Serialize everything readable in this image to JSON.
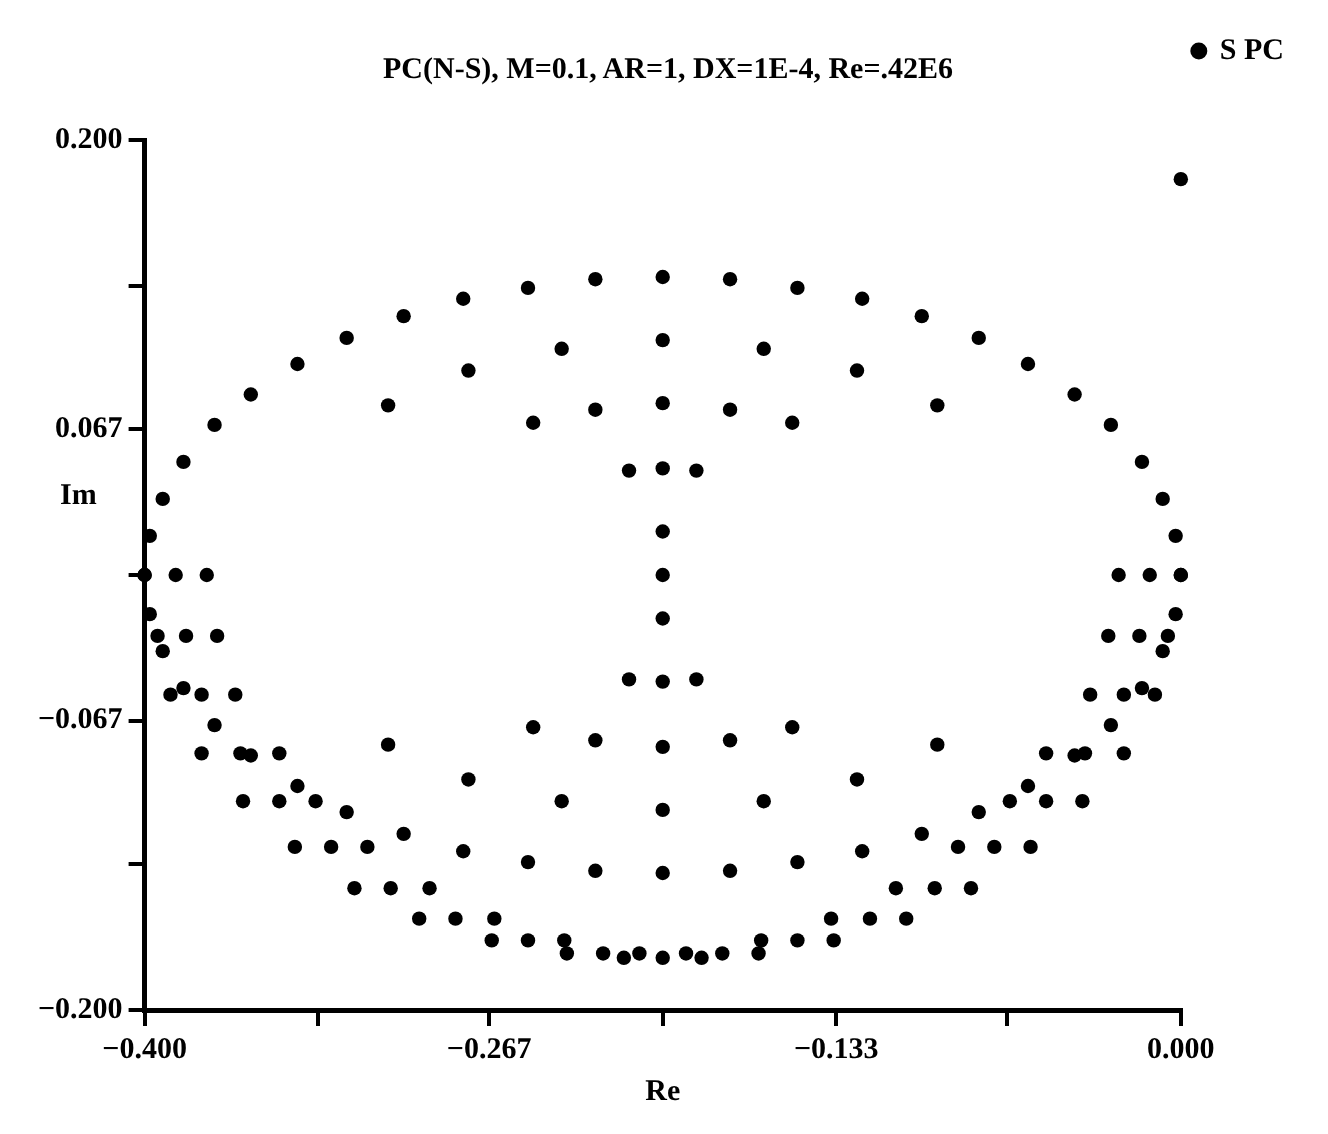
{
  "chart_data": {
    "type": "scatter",
    "title": "PC(N-S), M=0.1, AR=1, DX=1E-4, Re=.42E6",
    "xlabel": "Re",
    "ylabel": "Im",
    "xlim": [
      -0.4,
      0.0
    ],
    "xticks": [
      {
        "value": -0.4,
        "label": "−0.400"
      },
      {
        "value": -0.333,
        "label": null
      },
      {
        "value": -0.267,
        "label": "−0.267"
      },
      {
        "value": -0.2,
        "label": null
      },
      {
        "value": -0.133,
        "label": "−0.133"
      },
      {
        "value": -0.067,
        "label": null
      },
      {
        "value": 0.0,
        "label": "0.000"
      }
    ],
    "ylim": [
      -0.2,
      0.2
    ],
    "yticks": [
      {
        "value": -0.2,
        "label": "−0.200"
      },
      {
        "value": -0.133,
        "label": null
      },
      {
        "value": -0.067,
        "label": "−0.067"
      },
      {
        "value": 0.0,
        "label": null
      },
      0.067,
      {
        "value": 0.133,
        "label": null
      },
      {
        "value": 0.2,
        "label": "0.200"
      }
    ],
    "legend": "top right",
    "marker": "circle",
    "series": [
      {
        "name": "S PC",
        "color": "#000000",
        "x": [
          0.0,
          -0.002,
          -0.007,
          -0.015,
          -0.027,
          -0.041,
          -0.059,
          -0.078,
          -0.1,
          -0.123,
          -0.148,
          -0.174,
          -0.2,
          -0.226,
          -0.252,
          -0.277,
          -0.3,
          -0.322,
          -0.341,
          -0.359,
          -0.373,
          -0.385,
          -0.393,
          -0.398,
          -0.4,
          -0.398,
          -0.393,
          -0.385,
          -0.373,
          -0.359,
          -0.341,
          -0.322,
          -0.3,
          -0.277,
          -0.252,
          -0.226,
          -0.2,
          -0.174,
          -0.148,
          -0.123,
          -0.1,
          -0.078,
          -0.059,
          -0.041,
          -0.027,
          -0.015,
          -0.007,
          -0.002,
          -0.094,
          -0.125,
          -0.15,
          -0.161,
          -0.174,
          -0.187,
          -0.2,
          -0.2,
          -0.2,
          -0.239,
          -0.226,
          -0.213,
          -0.275,
          -0.25,
          -0.306,
          -0.094,
          -0.125,
          -0.15,
          -0.161,
          -0.174,
          -0.187,
          -0.2,
          -0.2,
          -0.2,
          -0.239,
          -0.226,
          -0.213,
          -0.275,
          -0.25,
          -0.306,
          -0.2,
          -0.2,
          -0.2,
          -0.4,
          -0.388,
          -0.376,
          -0.395,
          -0.384,
          -0.372,
          -0.39,
          -0.378,
          -0.365,
          -0.378,
          -0.363,
          -0.348,
          -0.362,
          -0.348,
          -0.334,
          -0.342,
          -0.328,
          -0.314,
          -0.319,
          -0.305,
          -0.29,
          -0.294,
          -0.28,
          -0.265,
          -0.266,
          -0.252,
          -0.238,
          -0.237,
          -0.223,
          -0.209,
          -0.215,
          -0.2,
          -0.185,
          -0.191,
          -0.177,
          -0.163,
          -0.162,
          -0.148,
          -0.134,
          -0.135,
          -0.12,
          -0.106,
          -0.11,
          -0.095,
          -0.081,
          -0.086,
          -0.072,
          -0.058,
          -0.066,
          -0.052,
          -0.038,
          -0.052,
          -0.037,
          -0.022,
          -0.035,
          -0.022,
          -0.01,
          -0.028,
          -0.016,
          -0.005,
          -0.024,
          -0.012,
          0.0,
          0.0
        ],
        "values": [
          0.0,
          0.018,
          0.035,
          0.052,
          0.069,
          0.083,
          0.097,
          0.109,
          0.119,
          0.127,
          0.132,
          0.136,
          0.137,
          0.136,
          0.132,
          0.127,
          0.119,
          0.109,
          0.097,
          0.083,
          0.069,
          0.052,
          0.035,
          0.018,
          0.0,
          -0.018,
          -0.035,
          -0.052,
          -0.069,
          -0.083,
          -0.097,
          -0.109,
          -0.119,
          -0.127,
          -0.132,
          -0.136,
          -0.137,
          -0.136,
          -0.132,
          -0.127,
          -0.119,
          -0.109,
          -0.097,
          -0.083,
          -0.069,
          -0.052,
          -0.035,
          -0.018,
          0.078,
          0.094,
          0.07,
          0.104,
          0.076,
          0.048,
          0.108,
          0.079,
          0.049,
          0.104,
          0.076,
          0.048,
          0.094,
          0.07,
          0.078,
          -0.078,
          -0.094,
          -0.07,
          -0.104,
          -0.076,
          -0.048,
          -0.108,
          -0.079,
          -0.049,
          -0.104,
          -0.076,
          -0.048,
          -0.094,
          -0.07,
          -0.078,
          0.02,
          0.0,
          -0.02,
          0.0,
          0.0,
          0.0,
          -0.028,
          -0.028,
          -0.028,
          -0.055,
          -0.055,
          -0.055,
          -0.082,
          -0.082,
          -0.082,
          -0.104,
          -0.104,
          -0.104,
          -0.125,
          -0.125,
          -0.125,
          -0.144,
          -0.144,
          -0.144,
          -0.158,
          -0.158,
          -0.158,
          -0.168,
          -0.168,
          -0.168,
          -0.174,
          -0.174,
          -0.174,
          -0.176,
          -0.176,
          -0.176,
          -0.174,
          -0.174,
          -0.174,
          -0.168,
          -0.168,
          -0.168,
          -0.158,
          -0.158,
          -0.158,
          -0.144,
          -0.144,
          -0.144,
          -0.125,
          -0.125,
          -0.125,
          -0.104,
          -0.104,
          -0.104,
          -0.082,
          -0.082,
          -0.082,
          -0.055,
          -0.055,
          -0.055,
          -0.028,
          -0.028,
          -0.028,
          0.0,
          0.0,
          0.0,
          0.182
        ]
      }
    ]
  }
}
